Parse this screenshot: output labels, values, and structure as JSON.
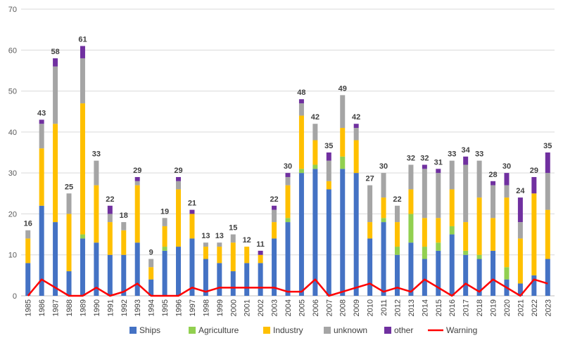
{
  "chart_data": {
    "type": "bar",
    "stacked": true,
    "title": "",
    "xlabel": "",
    "ylabel": "",
    "ylim": [
      0,
      70
    ],
    "yticks": [
      0,
      10,
      20,
      30,
      40,
      50,
      60,
      70
    ],
    "grid": true,
    "legend_position": "bottom",
    "categories": [
      "1985",
      "1986",
      "1987",
      "1988",
      "1989",
      "1990",
      "1991",
      "1992",
      "1993",
      "1994",
      "1995",
      "1996",
      "1997",
      "1998",
      "1999",
      "2000",
      "2001",
      "2002",
      "2003",
      "2004",
      "2005",
      "2006",
      "2007",
      "2008",
      "2009",
      "2010",
      "2011",
      "2012",
      "2013",
      "2014",
      "2015",
      "2016",
      "2017",
      "2018",
      "2019",
      "2020",
      "2021",
      "2022",
      "2023"
    ],
    "series": [
      {
        "name": "Ships",
        "color": "#4472C4",
        "values": [
          8,
          22,
          18,
          6,
          14,
          13,
          10,
          10,
          13,
          4,
          11,
          12,
          14,
          9,
          8,
          6,
          8,
          8,
          14,
          18,
          30,
          31,
          26,
          31,
          30,
          14,
          18,
          10,
          13,
          9,
          11,
          15,
          10,
          9,
          11,
          4,
          3,
          5,
          9
        ]
      },
      {
        "name": "Agriculture",
        "color": "#92D050",
        "values": [
          0,
          0,
          0,
          0,
          1,
          0,
          0,
          0,
          0,
          0,
          1,
          0,
          0,
          0,
          0,
          0,
          0,
          0,
          0,
          1,
          1,
          1,
          0,
          3,
          0,
          0,
          1,
          2,
          7,
          3,
          2,
          2,
          1,
          1,
          0,
          3,
          0,
          0,
          0
        ]
      },
      {
        "name": "Industry",
        "color": "#FFC000",
        "values": [
          6,
          14,
          24,
          14,
          32,
          14,
          8,
          6,
          14,
          3,
          5,
          14,
          6,
          3,
          4,
          7,
          4,
          2,
          4,
          8,
          13,
          6,
          2,
          7,
          8,
          4,
          5,
          6,
          6,
          7,
          6,
          9,
          7,
          14,
          8,
          17,
          11,
          20,
          12
        ]
      },
      {
        "name": "unknown",
        "color": "#A5A5A5",
        "values": [
          2,
          6,
          14,
          5,
          11,
          6,
          2,
          2,
          1,
          2,
          2,
          2,
          0,
          1,
          1,
          2,
          0,
          0,
          3,
          2,
          3,
          4,
          5,
          8,
          3,
          9,
          6,
          4,
          6,
          12,
          11,
          7,
          14,
          9,
          8,
          3,
          4,
          0,
          9
        ]
      },
      {
        "name": "other",
        "color": "#7030A0",
        "values": [
          0,
          1,
          2,
          0,
          3,
          0,
          2,
          0,
          1,
          0,
          0,
          1,
          1,
          0,
          0,
          0,
          0,
          1,
          1,
          1,
          1,
          0,
          2,
          0,
          1,
          0,
          0,
          0,
          0,
          1,
          1,
          0,
          2,
          0,
          1,
          3,
          6,
          4,
          5
        ]
      }
    ],
    "line_series": {
      "name": "Warning",
      "color": "#FF0000",
      "values": [
        0,
        4,
        2,
        0,
        0,
        2,
        0,
        1,
        3,
        0,
        0,
        0,
        2,
        1,
        2,
        2,
        2,
        2,
        2,
        1,
        1,
        4,
        0,
        1,
        2,
        3,
        1,
        2,
        1,
        4,
        2,
        0,
        3,
        1,
        4,
        2,
        0,
        4,
        3
      ]
    },
    "totals": [
      16,
      43,
      58,
      25,
      61,
      33,
      22,
      18,
      29,
      9,
      19,
      29,
      21,
      13,
      13,
      15,
      12,
      11,
      22,
      30,
      48,
      42,
      35,
      49,
      42,
      27,
      30,
      22,
      32,
      32,
      31,
      33,
      34,
      33,
      28,
      30,
      24,
      29,
      35
    ]
  }
}
